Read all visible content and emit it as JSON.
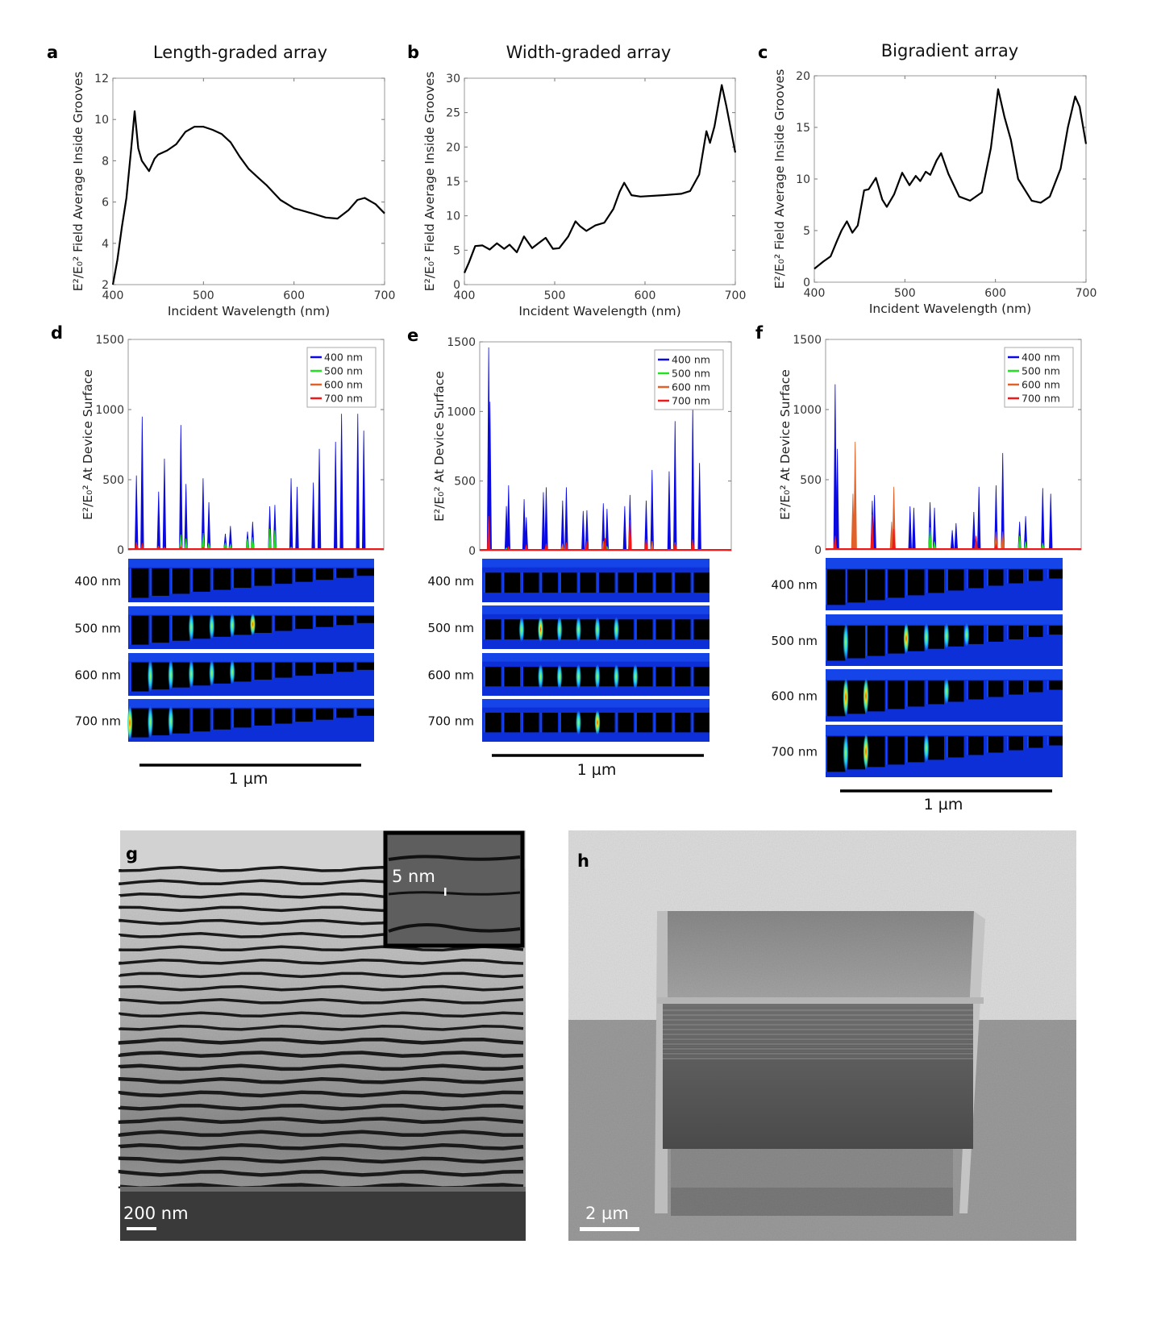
{
  "panels": {
    "a": {
      "letter": "a",
      "title": "Length-graded array"
    },
    "b": {
      "letter": "b",
      "title": "Width-graded array"
    },
    "c": {
      "letter": "c",
      "title": "Bigradient array"
    },
    "d": {
      "letter": "d",
      "map_labels": [
        "400 nm",
        "500 nm",
        "600 nm",
        "700 nm"
      ],
      "scale_label": "1 µm"
    },
    "e": {
      "letter": "e",
      "map_labels": [
        "400 nm",
        "500 nm",
        "600 nm",
        "700 nm"
      ],
      "scale_label": "1 µm"
    },
    "f": {
      "letter": "f",
      "map_labels": [
        "400 nm",
        "500 nm",
        "600 nm",
        "700 nm"
      ],
      "scale_label": "1 µm"
    },
    "g": {
      "letter": "g",
      "scale_label": "200 nm",
      "inset_scale_label": "5 nm"
    },
    "h": {
      "letter": "h",
      "scale_label": "2 µm"
    }
  },
  "colors": {
    "400 nm": "#0a0ae0",
    "500 nm": "#22e022",
    "600 nm": "#e0622a",
    "700 nm": "#f01818",
    "curve": "#000000"
  },
  "chart_data": [
    {
      "type": "line",
      "panel": "a",
      "title": "Length-graded array",
      "xlabel": "Incident Wavelength (nm)",
      "ylabel": "E²/E₀² Field Average Inside Grooves",
      "xlim": [
        400,
        700
      ],
      "ylim": [
        2,
        12
      ],
      "xticks": [
        "400",
        "500",
        "600",
        "700"
      ],
      "yticks": [
        "2",
        "4",
        "6",
        "8",
        "10",
        "12"
      ],
      "grid": false,
      "x": [
        400,
        405,
        410,
        415,
        420,
        424,
        428,
        432,
        440,
        446,
        450,
        460,
        470,
        480,
        490,
        500,
        510,
        520,
        530,
        540,
        550,
        560,
        570,
        585,
        600,
        620,
        635,
        648,
        660,
        670,
        678,
        690,
        700
      ],
      "y": [
        2,
        3.2,
        4.8,
        6.2,
        8.5,
        10.4,
        8.6,
        8.0,
        7.5,
        8.1,
        8.3,
        8.5,
        8.8,
        9.4,
        9.65,
        9.65,
        9.5,
        9.3,
        8.9,
        8.2,
        7.6,
        7.2,
        6.8,
        6.1,
        5.7,
        5.45,
        5.25,
        5.2,
        5.6,
        6.1,
        6.2,
        5.9,
        5.45
      ]
    },
    {
      "type": "line",
      "panel": "b",
      "title": "Width-graded array",
      "xlabel": "Incident Wavelength (nm)",
      "ylabel": "E²/E₀² Field Average Inside Grooves",
      "xlim": [
        400,
        700
      ],
      "ylim": [
        0,
        30
      ],
      "xticks": [
        "400",
        "500",
        "600",
        "700"
      ],
      "yticks": [
        "0",
        "5",
        "10",
        "15",
        "20",
        "25",
        "30"
      ],
      "grid": false,
      "x": [
        400,
        405,
        412,
        420,
        428,
        436,
        444,
        450,
        458,
        466,
        475,
        482,
        490,
        498,
        505,
        515,
        523,
        528,
        535,
        545,
        555,
        565,
        572,
        577,
        585,
        595,
        620,
        640,
        650,
        660,
        668,
        672,
        677,
        685,
        690,
        700
      ],
      "y": [
        1.7,
        3.2,
        5.6,
        5.7,
        5.1,
        6.0,
        5.2,
        5.8,
        4.7,
        7.0,
        5.3,
        6.0,
        6.8,
        5.2,
        5.3,
        7.0,
        9.2,
        8.5,
        7.8,
        8.6,
        9.0,
        11.0,
        13.5,
        14.8,
        13.0,
        12.8,
        13.0,
        13.2,
        13.6,
        16.0,
        22.3,
        20.6,
        23.0,
        29.0,
        26.0,
        19.2
      ]
    },
    {
      "type": "line",
      "panel": "c",
      "title": "Bigradient array",
      "xlabel": "Incident Wavelength (nm)",
      "ylabel": "E²/E₀² Field Average Inside Grooves",
      "xlim": [
        400,
        700
      ],
      "ylim": [
        0,
        20
      ],
      "xticks": [
        "400",
        "500",
        "600",
        "700"
      ],
      "yticks": [
        "0",
        "5",
        "10",
        "15",
        "20"
      ],
      "grid": false,
      "x": [
        400,
        410,
        418,
        425,
        430,
        436,
        442,
        448,
        455,
        460,
        468,
        475,
        480,
        488,
        497,
        505,
        512,
        517,
        523,
        528,
        535,
        540,
        548,
        560,
        572,
        585,
        595,
        603,
        610,
        617,
        625,
        640,
        650,
        660,
        672,
        680,
        688,
        693,
        700
      ],
      "y": [
        1.3,
        2.0,
        2.5,
        4.0,
        5.0,
        5.9,
        4.8,
        5.5,
        8.9,
        9.0,
        10.1,
        8.0,
        7.3,
        8.5,
        10.6,
        9.4,
        10.3,
        9.8,
        10.7,
        10.4,
        11.8,
        12.5,
        10.5,
        8.3,
        7.9,
        8.7,
        13.0,
        18.7,
        16.0,
        13.8,
        10.0,
        7.9,
        7.7,
        8.3,
        11.0,
        15.0,
        18.0,
        17.0,
        13.4
      ]
    },
    {
      "type": "line",
      "panel": "d",
      "ylabel": "E²/E₀² At Device Surface",
      "ylim": [
        0,
        1500
      ],
      "yticks": [
        "0",
        "500",
        "1000",
        "1500"
      ],
      "xunit": "nm along surface",
      "xlim": [
        0,
        1150
      ],
      "legend": "top-right",
      "grid": false,
      "series": [
        {
          "name": "400 nm",
          "peaks": [
            [
              37,
              530
            ],
            [
              63,
              950
            ],
            [
              137,
              415
            ],
            [
              163,
              650
            ],
            [
              237,
              890
            ],
            [
              260,
              470
            ],
            [
              337,
              510
            ],
            [
              363,
              340
            ],
            [
              437,
              115
            ],
            [
              460,
              170
            ],
            [
              537,
              130
            ],
            [
              560,
              200
            ],
            [
              637,
              310
            ],
            [
              660,
              320
            ],
            [
              733,
              510
            ],
            [
              760,
              450
            ],
            [
              833,
              480
            ],
            [
              860,
              720
            ],
            [
              933,
              770
            ],
            [
              960,
              970
            ],
            [
              1033,
              970
            ],
            [
              1060,
              850
            ]
          ]
        },
        {
          "name": "500 nm",
          "peaks": [
            [
              237,
              110
            ],
            [
              260,
              80
            ],
            [
              337,
              120
            ],
            [
              363,
              50
            ],
            [
              437,
              50
            ],
            [
              460,
              40
            ],
            [
              537,
              80
            ],
            [
              560,
              90
            ],
            [
              637,
              150
            ],
            [
              660,
              140
            ],
            [
              733,
              20
            ]
          ]
        },
        {
          "name": "600 nm",
          "peaks": [
            [
              37,
              40
            ],
            [
              63,
              30
            ],
            [
              137,
              25
            ],
            [
              237,
              30
            ],
            [
              337,
              25
            ],
            [
              437,
              20
            ]
          ]
        },
        {
          "name": "700 nm",
          "peaks": [
            [
              37,
              55
            ],
            [
              63,
              45
            ],
            [
              137,
              20
            ],
            [
              163,
              20
            ],
            [
              237,
              20
            ],
            [
              337,
              15
            ]
          ]
        }
      ]
    },
    {
      "type": "line",
      "panel": "e",
      "ylabel": "E²/E₀² At Device Surface",
      "ylim": [
        0,
        1500
      ],
      "yticks": [
        "0",
        "500",
        "1000",
        "1500"
      ],
      "xunit": "nm along surface",
      "xlim": [
        0,
        1150
      ],
      "legend": "top-right",
      "grid": false,
      "series": [
        {
          "name": "400 nm",
          "peaks": [
            [
              41,
              1460
            ],
            [
              47,
              1070
            ],
            [
              122,
              320
            ],
            [
              132,
              470
            ],
            [
              203,
              370
            ],
            [
              213,
              240
            ],
            [
              291,
              420
            ],
            [
              304,
              455
            ],
            [
              379,
              360
            ],
            [
              396,
              455
            ],
            [
              473,
              285
            ],
            [
              490,
              290
            ],
            [
              565,
              340
            ],
            [
              582,
              300
            ],
            [
              663,
              320
            ],
            [
              687,
              400
            ],
            [
              761,
              360
            ],
            [
              788,
              580
            ],
            [
              866,
              570
            ],
            [
              893,
              930
            ],
            [
              974,
              1030
            ],
            [
              1005,
              630
            ]
          ]
        },
        {
          "name": "500 nm",
          "peaks": [
            [
              122,
              20
            ],
            [
              213,
              20
            ],
            [
              304,
              25
            ],
            [
              396,
              20
            ],
            [
              490,
              25
            ],
            [
              582,
              30
            ],
            [
              687,
              30
            ],
            [
              788,
              20
            ],
            [
              893,
              20
            ]
          ]
        },
        {
          "name": "600 nm",
          "peaks": [
            [
              379,
              50
            ],
            [
              565,
              70
            ],
            [
              687,
              80
            ],
            [
              788,
              70
            ],
            [
              893,
              60
            ],
            [
              974,
              70
            ]
          ]
        },
        {
          "name": "700 nm",
          "peaks": [
            [
              41,
              250
            ],
            [
              132,
              30
            ],
            [
              213,
              40
            ],
            [
              304,
              50
            ],
            [
              396,
              60
            ],
            [
              490,
              70
            ],
            [
              573,
              90
            ],
            [
              687,
              220
            ],
            [
              761,
              80
            ],
            [
              893,
              50
            ],
            [
              974,
              80
            ]
          ]
        }
      ]
    },
    {
      "type": "line",
      "panel": "f",
      "ylabel": "E²/E₀² At Device Surface",
      "ylim": [
        0,
        1500
      ],
      "yticks": [
        "0",
        "500",
        "1000",
        "1500"
      ],
      "xunit": "nm along surface",
      "xlim": [
        0,
        1150
      ],
      "legend": "top-right",
      "grid": false,
      "series": [
        {
          "name": "400 nm",
          "peaks": [
            [
              43,
              1180
            ],
            [
              53,
              720
            ],
            [
              210,
              350
            ],
            [
              220,
              390
            ],
            [
              380,
              310
            ],
            [
              397,
              300
            ],
            [
              470,
              340
            ],
            [
              490,
              300
            ],
            [
              570,
              140
            ],
            [
              587,
              190
            ],
            [
              667,
              270
            ],
            [
              690,
              450
            ],
            [
              767,
              460
            ],
            [
              797,
              690
            ],
            [
              873,
              200
            ],
            [
              900,
              240
            ],
            [
              977,
              440
            ],
            [
              1013,
              400
            ]
          ]
        },
        {
          "name": "500 nm",
          "peaks": [
            [
              470,
              160
            ],
            [
              490,
              60
            ],
            [
              873,
              100
            ],
            [
              900,
              60
            ],
            [
              977,
              50
            ]
          ]
        },
        {
          "name": "600 nm",
          "peaks": [
            [
              123,
              400
            ],
            [
              133,
              770
            ],
            [
              297,
              200
            ],
            [
              307,
              450
            ],
            [
              677,
              90
            ],
            [
              767,
              130
            ],
            [
              797,
              130
            ]
          ]
        },
        {
          "name": "700 nm",
          "peaks": [
            [
              43,
              100
            ],
            [
              210,
              250
            ],
            [
              307,
              150
            ],
            [
              677,
              100
            ],
            [
              767,
              40
            ]
          ]
        }
      ]
    }
  ]
}
